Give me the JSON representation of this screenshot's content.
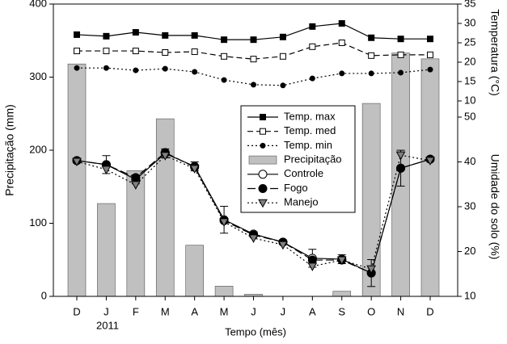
{
  "chart_data": [
    {
      "type": "bar",
      "x_label": "Tempo (mês)",
      "y_label": "Precipitação (mm)",
      "year_label": "2011",
      "categories": [
        "D",
        "J",
        "F",
        "M",
        "A",
        "M",
        "J",
        "J",
        "A",
        "S",
        "O",
        "N",
        "D"
      ],
      "series": [
        {
          "name": "Precipitação",
          "color": "#c0c0c0",
          "values": [
            318,
            127,
            172,
            243,
            70,
            14,
            3,
            0,
            0,
            7,
            264,
            333,
            325
          ]
        }
      ],
      "ylim": [
        0,
        400
      ],
      "yticks": [
        0,
        100,
        200,
        300,
        400
      ]
    },
    {
      "type": "line",
      "y_label": "Temperatura (°C)",
      "series": [
        {
          "name": "Temp. max",
          "color": "#000000",
          "dash": "solid",
          "marker": "square",
          "marker_fill": "#000000",
          "values": [
            27.1,
            26.7,
            27.7,
            26.9,
            26.9,
            25.8,
            25.8,
            26.5,
            29.2,
            30.0,
            26.3,
            26.0,
            26.0
          ]
        },
        {
          "name": "Temp. med",
          "color": "#000000",
          "dash": "dashed",
          "marker": "square",
          "marker_fill": "#ffffff",
          "values": [
            22.9,
            22.9,
            22.9,
            22.5,
            22.7,
            21.5,
            20.8,
            21.5,
            24.0,
            25.0,
            21.7,
            21.9,
            21.9
          ]
        },
        {
          "name": "Temp. min",
          "color": "#000000",
          "dash": "dotted",
          "marker": "circle-small",
          "marker_fill": "#000000",
          "values": [
            18.5,
            18.5,
            17.9,
            18.3,
            17.5,
            15.4,
            14.2,
            14.0,
            15.8,
            17.1,
            17.1,
            17.3,
            18.1
          ]
        }
      ],
      "ylim": [
        10,
        35
      ],
      "yticks": [
        10,
        15,
        20,
        25,
        30,
        35
      ]
    },
    {
      "type": "line",
      "y_label": "Umidade do solo (%)",
      "series": [
        {
          "name": "Controle",
          "color": "#000000",
          "dash": "solid",
          "marker": "circle",
          "marker_fill": "#ffffff",
          "values": [
            40.3,
            39.4,
            36.1,
            41.9,
            39.0,
            27.1,
            23.9,
            22.1,
            18.5,
            18.3,
            15.2,
            38.6,
            40.6
          ],
          "errors": [
            0.5,
            2.0,
            1.0,
            1.0,
            1.0,
            3.0,
            0.5,
            0.5,
            2.0,
            1.0,
            3.0,
            4.0,
            0.5
          ]
        },
        {
          "name": "Fogo",
          "color": "#000000",
          "dash": "longdash",
          "marker": "circle",
          "marker_fill": "#000000",
          "values": [
            40.3,
            39.4,
            36.5,
            42.1,
            38.8,
            26.9,
            23.7,
            22.1,
            18.1,
            18.1,
            15.2,
            38.6,
            40.6
          ]
        },
        {
          "name": "Manejo",
          "color": "#000000",
          "dash": "dotted",
          "marker": "triangle-down",
          "marker_fill": "#808080",
          "values": [
            40.1,
            38.3,
            34.9,
            41.4,
            38.5,
            26.6,
            23.0,
            21.5,
            16.7,
            18.1,
            16.1,
            41.5,
            40.3
          ]
        }
      ],
      "ylim": [
        10,
        50
      ],
      "yticks": [
        10,
        20,
        30,
        40,
        50
      ]
    }
  ]
}
